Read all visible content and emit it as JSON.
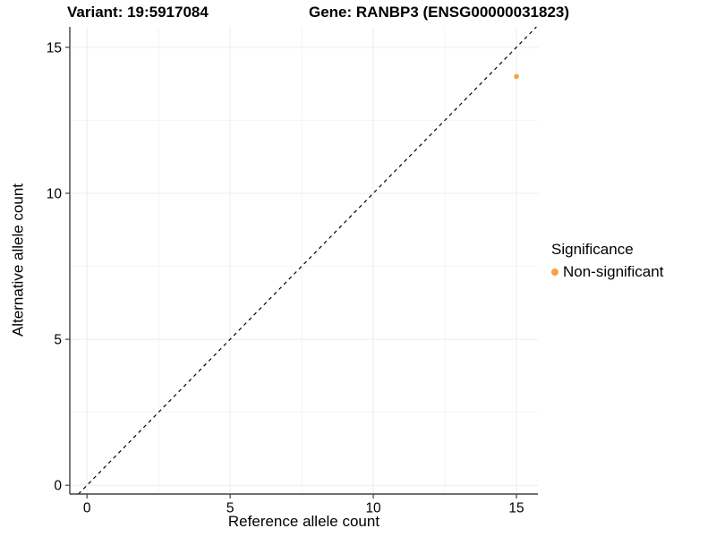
{
  "chart_data": {
    "type": "scatter",
    "title_left": "Variant: 19:5917084",
    "title_right": "Gene: RANBP3 (ENSG00000031823)",
    "xlabel": "Reference allele count",
    "ylabel": "Alternative allele count",
    "xlim": [
      -0.6,
      15.75
    ],
    "ylim": [
      -0.3,
      15.7
    ],
    "x_ticks": [
      0,
      5,
      10,
      15
    ],
    "y_ticks": [
      0,
      5,
      10,
      15
    ],
    "x_minor_ticks": [
      2.5,
      7.5,
      12.5
    ],
    "y_minor_ticks": [
      2.5,
      7.5,
      12.5
    ],
    "grid": "major+minor",
    "points": [
      {
        "x": 15,
        "y": 14,
        "significance": "Non-significant"
      }
    ],
    "reference_line": {
      "kind": "identity",
      "slope": 1,
      "intercept": 0,
      "linetype": "dashed"
    },
    "legend": {
      "title": "Significance",
      "position": "right",
      "items": [
        {
          "label": "Non-significant",
          "color": "#F9A23D"
        }
      ]
    },
    "colors": {
      "point": "#F9A23D",
      "axis_line": "#404040",
      "tick_mark": "#404040",
      "grid_major": "#ECECEC",
      "grid_minor": "#F4F4F4",
      "text": "#000000",
      "reference_line": "#000000",
      "background": "#FFFFFF"
    }
  }
}
